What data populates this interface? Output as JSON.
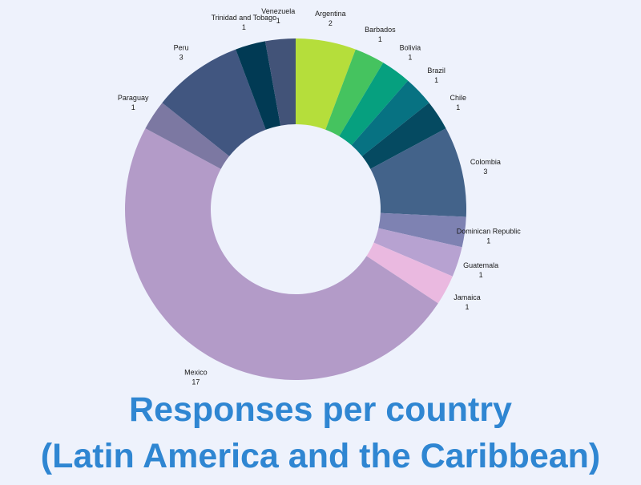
{
  "chart_data": {
    "type": "pie",
    "subtype": "donut",
    "title": [
      "Responses per country",
      "(Latin America and the Caribbean)"
    ],
    "categories": [
      "Argentina",
      "Barbados",
      "Bolivia",
      "Brazil",
      "Chile",
      "Colombia",
      "Dominican Republic",
      "Guatemala",
      "Jamaica",
      "Mexico",
      "Paraguay",
      "Peru",
      "Trinidad and Tobago",
      "Venezuela"
    ],
    "values": [
      2,
      1,
      1,
      1,
      1,
      3,
      1,
      1,
      1,
      17,
      1,
      3,
      1,
      1
    ],
    "colors": [
      "#b5de3b",
      "#45c35f",
      "#06a07f",
      "#077282",
      "#054a61",
      "#43638a",
      "#7e82b2",
      "#b7a2d1",
      "#eab9e0",
      "#b39bc8",
      "#7c78a2",
      "#415680",
      "#013a54",
      "#425378"
    ],
    "legend": "none",
    "labels_show": "category and value"
  }
}
